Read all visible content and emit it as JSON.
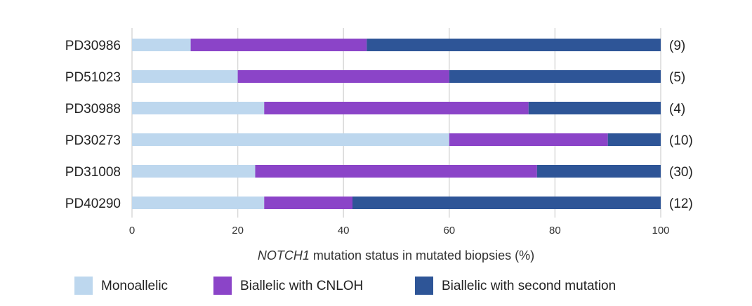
{
  "chart_data": {
    "type": "bar",
    "orientation": "horizontal",
    "stacked": true,
    "categories": [
      "PD30986",
      "PD51023",
      "PD30988",
      "PD30273",
      "PD31008",
      "PD40290"
    ],
    "counts": [
      "(9)",
      "(5)",
      "(4)",
      "(10)",
      "(30)",
      "(12)"
    ],
    "series": [
      {
        "name": "Monoallelic",
        "color": "#bdd7ee",
        "values": [
          11.1,
          20,
          25,
          60,
          23.3,
          25
        ]
      },
      {
        "name": "Biallelic with CNLOH",
        "color": "#8b44c8",
        "values": [
          33.3,
          40,
          50,
          30,
          53.3,
          16.7
        ]
      },
      {
        "name": "Biallelic with second mutation",
        "color": "#2e5597",
        "values": [
          55.6,
          40,
          25,
          10,
          23.4,
          58.3
        ]
      }
    ],
    "xlabel_italic": "NOTCH1",
    "xlabel_rest": " mutation status in mutated biopsies (%)",
    "xlim": [
      0,
      100
    ],
    "xticks": [
      0,
      20,
      40,
      60,
      80,
      100
    ],
    "grid": true,
    "legend_position": "bottom"
  }
}
